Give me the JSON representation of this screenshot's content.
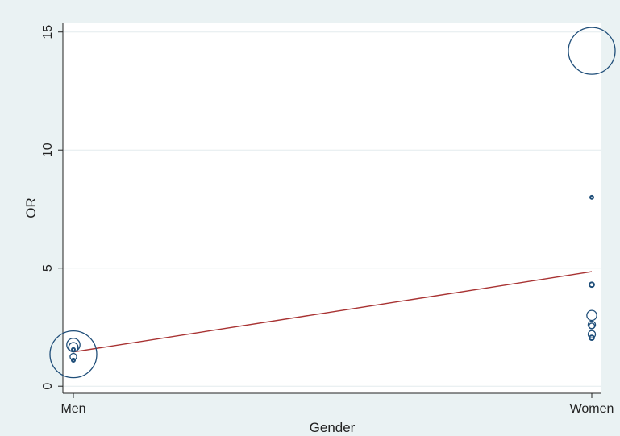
{
  "chart_data": {
    "type": "scatter",
    "title": "",
    "xlabel": "Gender",
    "ylabel": "OR",
    "categories": [
      "Men",
      "Women"
    ],
    "y_ticks": [
      "0",
      "5",
      "10",
      "15"
    ],
    "y_tick_values": [
      0,
      5,
      10,
      15
    ],
    "ylim": [
      -0.3,
      15.4
    ],
    "grid": true,
    "legend": "none",
    "marker": "hollow-circle-weighted",
    "points": [
      {
        "category": "Men",
        "y": 1.35,
        "weight": 1.0
      },
      {
        "category": "Men",
        "y": 1.75,
        "weight": 0.08
      },
      {
        "category": "Men",
        "y": 1.65,
        "weight": 0.04
      },
      {
        "category": "Men",
        "y": 1.25,
        "weight": 0.02
      },
      {
        "category": "Men",
        "y": 1.1,
        "weight": 0.005
      },
      {
        "category": "Men",
        "y": 1.55,
        "weight": 0.003
      },
      {
        "category": "Women",
        "y": 14.2,
        "weight": 1.0
      },
      {
        "category": "Women",
        "y": 8.0,
        "weight": 0.002
      },
      {
        "category": "Women",
        "y": 4.3,
        "weight": 0.01
      },
      {
        "category": "Women",
        "y": 3.0,
        "weight": 0.045
      },
      {
        "category": "Women",
        "y": 2.6,
        "weight": 0.025
      },
      {
        "category": "Women",
        "y": 2.55,
        "weight": 0.015
      },
      {
        "category": "Women",
        "y": 2.2,
        "weight": 0.025
      },
      {
        "category": "Women",
        "y": 2.05,
        "weight": 0.01
      }
    ],
    "fit_line": {
      "type": "linear",
      "y_start": 1.45,
      "y_end": 4.85
    }
  },
  "colors": {
    "background": "#eaf2f3",
    "plot_area": "#ffffff",
    "grid": "#e3ecee",
    "axis": "#222222",
    "marker": "#1f4e79",
    "fit_line": "#a83232"
  }
}
